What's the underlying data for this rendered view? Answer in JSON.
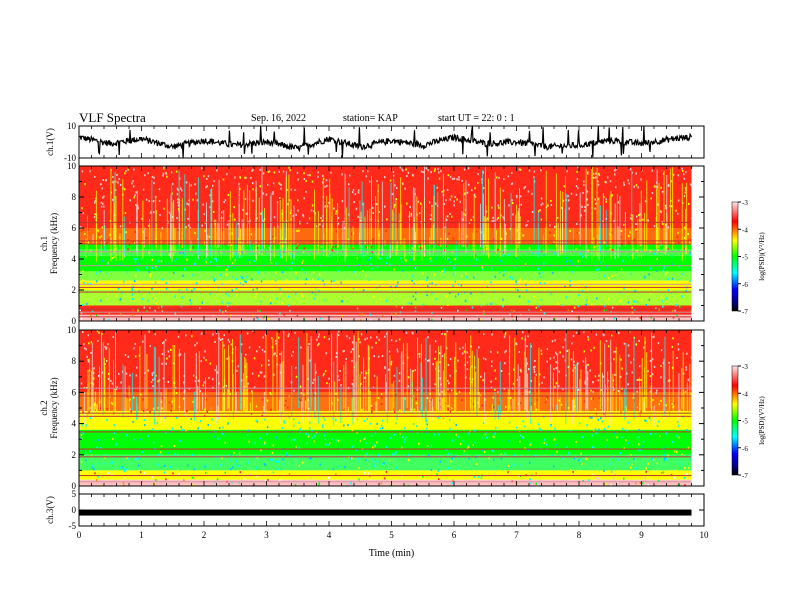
{
  "header": {
    "title": "VLF Spectra",
    "date": "Sep. 16, 2022",
    "station": "station= KAP",
    "start": "start  UT  =   22: 0  : 1"
  },
  "chart_data": [
    {
      "type": "line",
      "panel": "ch1-waveform",
      "ylabel": "ch.1(V)",
      "ylim": [
        -10,
        10
      ],
      "yticks": [
        "10",
        "-10"
      ],
      "xlim": [
        0,
        10
      ],
      "x": [
        0,
        0.5,
        1,
        1.5,
        2,
        2.5,
        3,
        3.5,
        4,
        4.5,
        5,
        5.5,
        6,
        6.5,
        7,
        7.5,
        8,
        8.5,
        9,
        9.5,
        9.8
      ],
      "y": [
        3,
        -1,
        2,
        -3,
        1,
        -2,
        0,
        -4,
        2,
        -3,
        1,
        -2,
        3,
        -1,
        0,
        -3,
        -2,
        1,
        -1,
        2,
        3
      ],
      "color": "#000000"
    },
    {
      "type": "heatmap",
      "panel": "ch1-spectrogram",
      "ylabel": "ch.1 Frequency (kHz)",
      "ylim": [
        0,
        10
      ],
      "yticks": [
        "0",
        "2",
        "4",
        "6",
        "8",
        "10"
      ],
      "xlim": [
        0,
        10
      ],
      "colorbar": {
        "label": "log(PSD)(V²/Hz)",
        "range": [
          -7,
          -3
        ],
        "ticks": [
          "-3",
          "-4",
          "-5",
          "-6",
          "-7"
        ]
      }
    },
    {
      "type": "heatmap",
      "panel": "ch2-spectrogram",
      "ylabel": "ch.2 Frequency (kHz)",
      "ylim": [
        0,
        10
      ],
      "yticks": [
        "0",
        "2",
        "4",
        "6",
        "8",
        "10"
      ],
      "xlim": [
        0,
        10
      ],
      "colorbar": {
        "label": "log(PSD)(V²/Hz)",
        "range": [
          -7,
          -3
        ],
        "ticks": [
          "-3",
          "-4",
          "-5",
          "-6",
          "-7"
        ]
      }
    },
    {
      "type": "line",
      "panel": "ch3-waveform",
      "ylabel": "ch.3(V)",
      "ylim": [
        -5,
        5
      ],
      "yticks": [
        "5",
        "0",
        "-5"
      ],
      "xlim": [
        0,
        10
      ],
      "x": [
        0,
        9.8
      ],
      "y": [
        -0.8,
        -0.8
      ],
      "color": "#000000"
    }
  ],
  "xaxis": {
    "label": "Time  (min)",
    "ticks": [
      "0",
      "1",
      "2",
      "3",
      "4",
      "5",
      "6",
      "7",
      "8",
      "9",
      "10"
    ]
  },
  "colors": {
    "low": "#000080",
    "mid_blue": "#0000ff",
    "cyan": "#00ffff",
    "green": "#00ff00",
    "yellow": "#ffff00",
    "red": "#ff2a1a",
    "pink": "#ffc0c0"
  }
}
